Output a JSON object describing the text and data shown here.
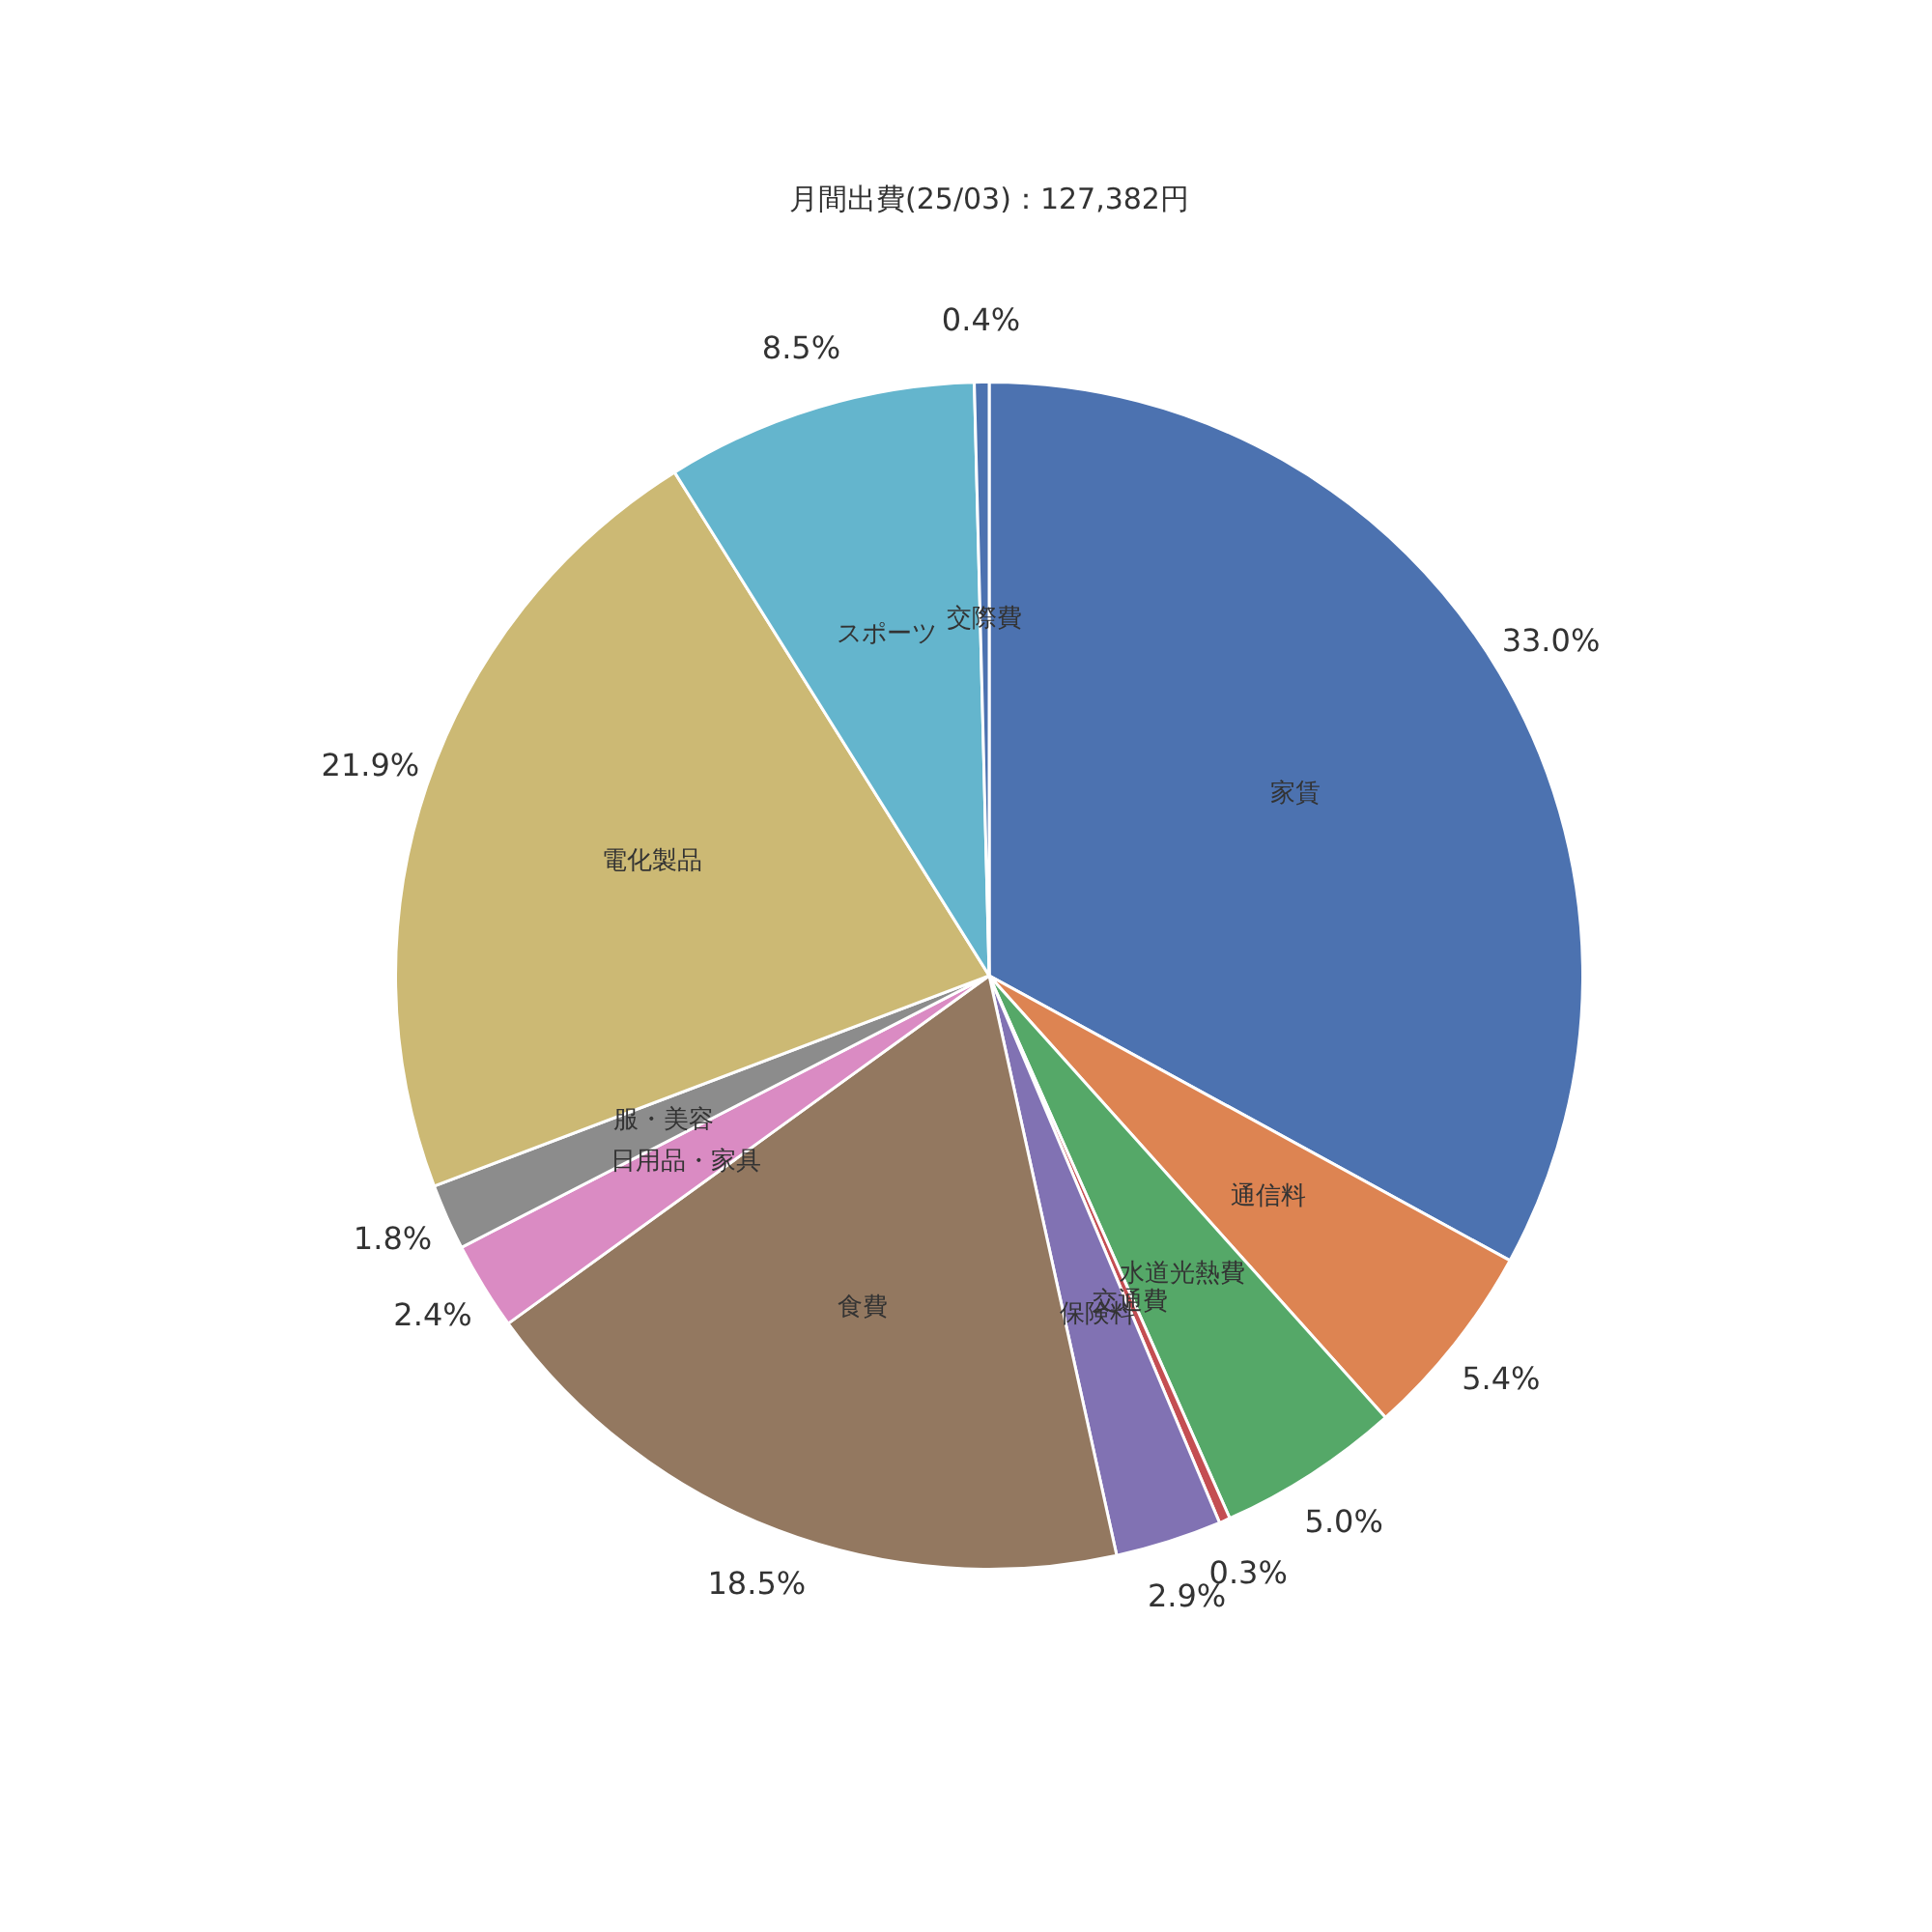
{
  "chart_data": {
    "type": "pie",
    "title": "月間出費(25/03)：127,382円",
    "categories": [
      "家賃",
      "通信料",
      "水道光熱費",
      "交通費",
      "保険料",
      "食費",
      "日用品・家具",
      "服・美容",
      "電化製品",
      "スポーツ",
      "交際費"
    ],
    "values": [
      33.0,
      5.4,
      5.0,
      0.3,
      2.9,
      18.5,
      2.4,
      1.8,
      21.9,
      8.5,
      0.4
    ],
    "value_labels": [
      "33.0%",
      "5.4%",
      "5.0%",
      "0.3%",
      "2.9%",
      "18.5%",
      "2.4%",
      "1.8%",
      "21.9%",
      "8.5%",
      "0.4%"
    ],
    "colors": [
      "#4c72b0",
      "#dd8452",
      "#55a868",
      "#c44e52",
      "#8172b3",
      "#937860",
      "#da8bc3",
      "#8c8c8c",
      "#ccb974",
      "#64b5cd",
      "#4c72b0"
    ],
    "legend": false
  }
}
